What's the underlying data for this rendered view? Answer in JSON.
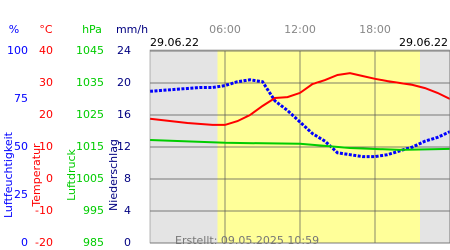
{
  "chart_data": {
    "type": "line",
    "date_left": "29.06.22",
    "date_right": "29.06.22",
    "created": "Erstellt: 09.05.2025 10:59",
    "xlim": [
      0,
      24
    ],
    "xticks": [
      {
        "value": 6,
        "label": "06:00"
      },
      {
        "value": 12,
        "label": "12:00"
      },
      {
        "value": 18,
        "label": "18:00"
      }
    ],
    "daylight": [
      5.4,
      21.6
    ],
    "grid": true,
    "axes": [
      {
        "label": "Luftfeuchtigkeit",
        "unit": "%",
        "color": "#0000ff",
        "lim": [
          0,
          100
        ],
        "ticks": [
          0,
          25,
          50,
          75,
          100
        ]
      },
      {
        "label": "Temperatur",
        "unit": "°C",
        "color": "#ff0000",
        "lim": [
          -20,
          40
        ],
        "ticks": [
          -20,
          -10,
          0,
          10,
          20,
          30,
          40
        ]
      },
      {
        "label": "Luftdruck",
        "unit": "hPa",
        "color": "#00cc00",
        "lim": [
          985,
          1045
        ],
        "ticks": [
          985,
          995,
          1005,
          1015,
          1025,
          1035,
          1045
        ]
      },
      {
        "label": "Niederschlag",
        "unit": "mm/h",
        "color": "#000080",
        "lim": [
          0,
          24
        ],
        "ticks": [
          0,
          4,
          8,
          12,
          16,
          20,
          24
        ]
      }
    ],
    "series": [
      {
        "axis": 0,
        "color": "#0000ff",
        "x": [
          0,
          2,
          4,
          5,
          6,
          7,
          8,
          9,
          10,
          11,
          12,
          13,
          14,
          15,
          16,
          17,
          18,
          19,
          20,
          21,
          22,
          23,
          24
        ],
        "values": [
          79,
          80,
          81,
          81,
          82,
          84,
          85,
          84,
          74,
          69,
          63,
          57,
          53,
          47,
          46,
          45,
          45,
          46,
          48,
          50,
          53,
          55,
          58
        ]
      },
      {
        "axis": 1,
        "color": "#ff0000",
        "x": [
          0,
          3,
          5,
          6,
          7,
          8,
          9,
          10,
          11,
          12,
          13,
          14,
          15,
          16,
          17,
          18,
          19,
          20,
          21,
          22,
          23,
          24
        ],
        "values": [
          18.8,
          17.5,
          16.9,
          16.9,
          18.1,
          20,
          22.8,
          25.3,
          25.6,
          26.9,
          29.7,
          30.9,
          32.5,
          33.1,
          32.2,
          31.3,
          30.6,
          30,
          29.4,
          28.4,
          26.9,
          25
        ]
      },
      {
        "axis": 2,
        "color": "#00cc00",
        "x": [
          0,
          6,
          12,
          16,
          20,
          24
        ],
        "values": [
          1017.2,
          1016.3,
          1016,
          1014.7,
          1014.1,
          1014.4
        ]
      }
    ]
  }
}
